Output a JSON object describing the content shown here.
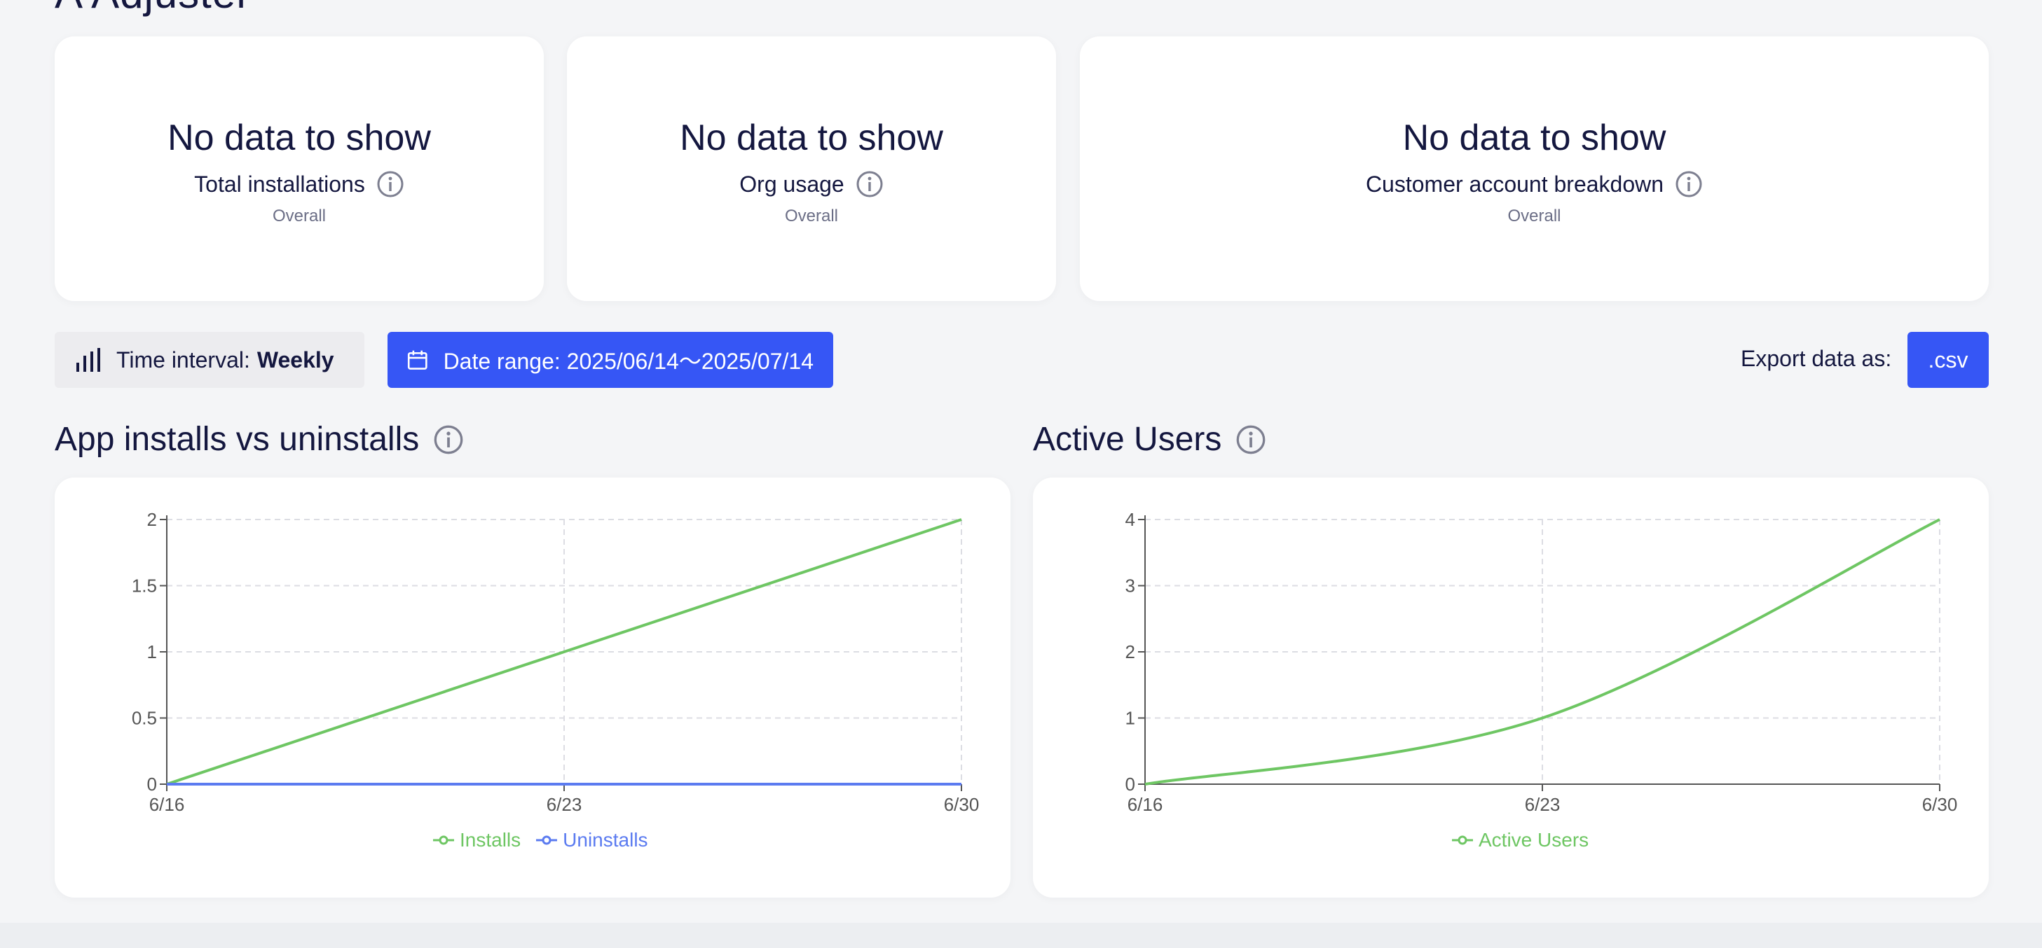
{
  "page": {
    "title": "A Adjuster"
  },
  "kpis": [
    {
      "value": "No data to show",
      "label": "Total installations",
      "sub": "Overall"
    },
    {
      "value": "No data to show",
      "label": "Org usage",
      "sub": "Overall"
    },
    {
      "value": "No data to show",
      "label": "Customer account breakdown",
      "sub": "Overall"
    }
  ],
  "toolbar": {
    "interval_prefix": "Time interval:",
    "interval_value": "Weekly",
    "date_range_label": "Date range: 2025/06/14〜2025/07/14",
    "export_label": "Export data as:",
    "export_format": ".csv"
  },
  "sections": {
    "installs_title": "App installs vs uninstalls",
    "active_title": "Active Users"
  },
  "colors": {
    "accent": "#3656f5",
    "installs": "#6ec663",
    "uninstalls": "#5b7bf0",
    "active": "#6ec663"
  },
  "chart_data": [
    {
      "type": "line",
      "title": "App installs vs uninstalls",
      "x": [
        "6/16",
        "6/23",
        "6/30"
      ],
      "ylim": [
        0,
        2
      ],
      "yticks": [
        "0",
        "0.5",
        "1",
        "1.5",
        "2"
      ],
      "grid": true,
      "legend": "bottom",
      "series": [
        {
          "name": "Installs",
          "values": [
            0,
            1,
            2
          ],
          "color": "#6ec663"
        },
        {
          "name": "Uninstalls",
          "values": [
            0,
            0,
            0
          ],
          "color": "#5b7bf0"
        }
      ]
    },
    {
      "type": "line",
      "title": "Active Users",
      "x": [
        "6/16",
        "6/23",
        "6/30"
      ],
      "ylim": [
        0,
        4
      ],
      "yticks": [
        "0",
        "1",
        "2",
        "3",
        "4"
      ],
      "grid": true,
      "legend": "bottom",
      "series": [
        {
          "name": "Active Users",
          "values": [
            0,
            1,
            4
          ],
          "color": "#6ec663"
        }
      ]
    }
  ]
}
